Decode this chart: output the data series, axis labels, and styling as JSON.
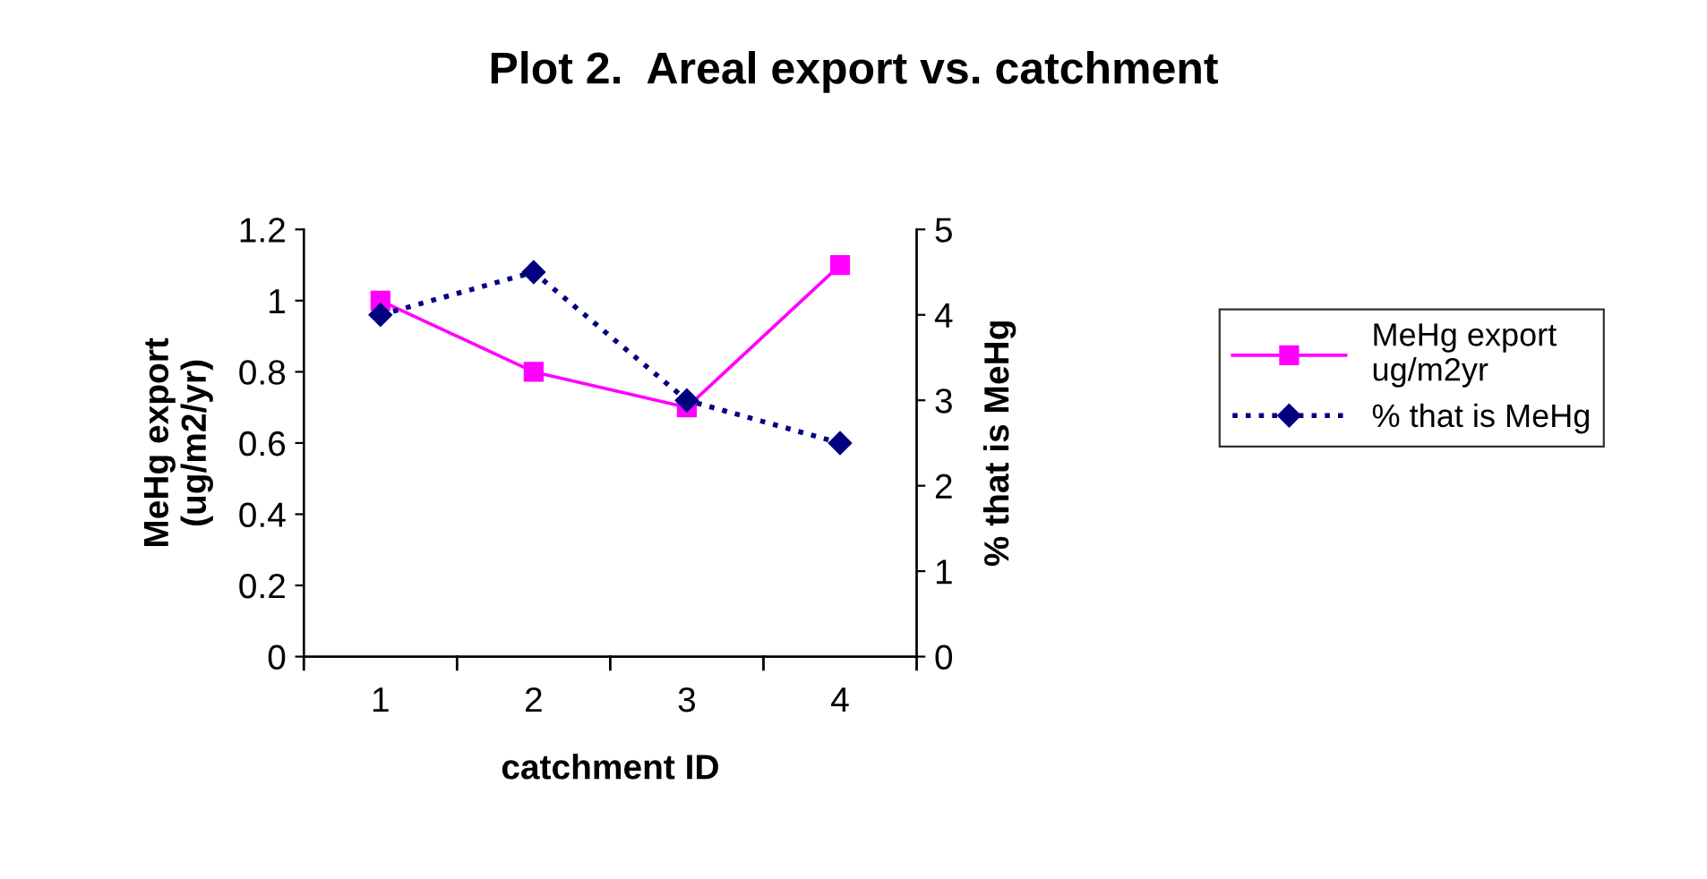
{
  "chart_data": {
    "type": "line",
    "title": "Plot 2.  Areal export vs. catchment",
    "xlabel": "catchment ID",
    "ylabel": "MeHg export\n(ug/m2/yr)",
    "y2label": "% that is MeHg",
    "categories": [
      "1",
      "2",
      "3",
      "4"
    ],
    "series": [
      {
        "name": "MeHg export\nug/m2yr",
        "color": "#ff00ff",
        "values": [
          1.0,
          0.8,
          0.7,
          1.1
        ],
        "marker": "square",
        "line_style": "solid"
      },
      {
        "name": "% that is MeHg",
        "color": "#000080",
        "values": [
          4,
          4.5,
          3,
          2.5
        ],
        "axis": "y2",
        "marker": "diamond",
        "line_style": "dotted"
      }
    ],
    "ylim": [
      0,
      1.2
    ],
    "yticks": [
      0,
      {
        "value": 0.2,
        "label": "0.2"
      },
      {
        "value": 0.4,
        "label": "0.4"
      },
      {
        "value": 0.6,
        "label": "0.6"
      },
      {
        "value": 0.8,
        "label": "0.8"
      },
      1,
      {
        "value": 1.2,
        "label": "1.2"
      }
    ],
    "y2lim": [
      0,
      5
    ],
    "y2ticks": [
      0,
      1,
      2,
      3,
      4,
      5
    ],
    "grid": false,
    "legend": "right"
  }
}
